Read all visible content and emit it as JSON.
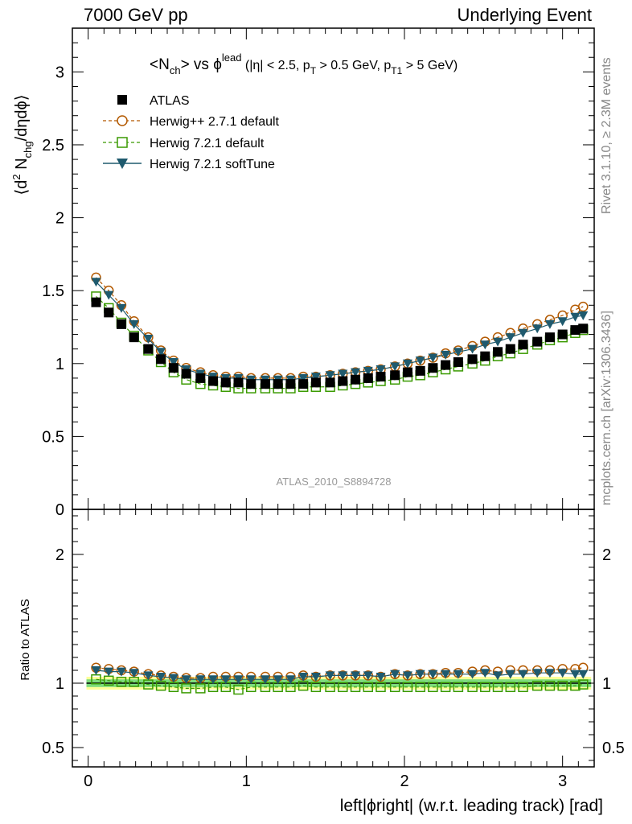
{
  "header": {
    "left": "7000 GeV pp",
    "right": "Underlying Event"
  },
  "side_text": {
    "rivet": "Rivet 3.1.10, ≥ 2.3M events",
    "mcplots": "mcplots.cern.ch [arXiv:1306.3436]"
  },
  "analysis_label": "ATLAS_2010_S8894728",
  "title": {
    "main": "<N",
    "main_sub": "ch",
    "vs": "> vs ϕ",
    "vs_sup": "lead",
    "cut1": " (|η| < 2.5, p",
    "cut1_sub": "T",
    "cut2": " > 0.5 GeV, p",
    "cut2_sub": "T1",
    "cut3": " > 5 GeV)"
  },
  "ylabel_top": {
    "a": "⟨d",
    "a_sup": "2",
    "b": " N",
    "b_sub": "chg",
    "c": "/dηdϕ⟩"
  },
  "ylabel_bottom": "Ratio to ATLAS",
  "xlabel": "left|ϕright| (w.r.t. leading track) [rad]",
  "legend": [
    {
      "label": "ATLAS",
      "color": "#000000",
      "marker": "filled-square"
    },
    {
      "label": "Herwig++ 2.7.1 default",
      "color": "#b35900",
      "marker": "open-circle"
    },
    {
      "label": "Herwig 7.2.1 default",
      "color": "#3a9a00",
      "marker": "open-square"
    },
    {
      "label": "Herwig 7.2.1 softTune",
      "color": "#1f5a6e",
      "marker": "filled-triangle-down"
    }
  ],
  "chart_data": [
    {
      "type": "scatter",
      "panel": "main",
      "x": [
        0.05,
        0.13,
        0.21,
        0.29,
        0.38,
        0.46,
        0.54,
        0.62,
        0.71,
        0.79,
        0.87,
        0.95,
        1.03,
        1.12,
        1.2,
        1.28,
        1.36,
        1.44,
        1.53,
        1.61,
        1.69,
        1.77,
        1.85,
        1.94,
        2.02,
        2.1,
        2.18,
        2.26,
        2.34,
        2.43,
        2.51,
        2.59,
        2.67,
        2.75,
        2.84,
        2.92,
        3.0,
        3.08,
        3.13
      ],
      "xlim": [
        -0.1,
        3.2
      ],
      "ylim": [
        0,
        3.3
      ],
      "xticks": [
        0,
        1,
        2,
        3
      ],
      "yticks": [
        0,
        0.5,
        1,
        1.5,
        2,
        2.5,
        3
      ],
      "series": [
        {
          "name": "ATLAS",
          "color": "#000000",
          "values": [
            1.42,
            1.35,
            1.27,
            1.18,
            1.1,
            1.03,
            0.97,
            0.93,
            0.9,
            0.88,
            0.87,
            0.87,
            0.86,
            0.86,
            0.86,
            0.86,
            0.86,
            0.87,
            0.87,
            0.88,
            0.89,
            0.9,
            0.91,
            0.92,
            0.94,
            0.95,
            0.97,
            0.99,
            1.01,
            1.03,
            1.05,
            1.08,
            1.1,
            1.13,
            1.15,
            1.18,
            1.2,
            1.23,
            1.24
          ]
        },
        {
          "name": "Herwig++ 2.7.1 default",
          "color": "#b35900",
          "values": [
            1.59,
            1.5,
            1.4,
            1.29,
            1.18,
            1.09,
            1.02,
            0.97,
            0.94,
            0.92,
            0.91,
            0.91,
            0.9,
            0.9,
            0.9,
            0.9,
            0.91,
            0.91,
            0.92,
            0.93,
            0.94,
            0.95,
            0.96,
            0.98,
            1.0,
            1.02,
            1.04,
            1.07,
            1.09,
            1.12,
            1.15,
            1.18,
            1.21,
            1.24,
            1.27,
            1.3,
            1.33,
            1.37,
            1.39
          ]
        },
        {
          "name": "Herwig 7.2.1 default",
          "color": "#3a9a00",
          "values": [
            1.46,
            1.38,
            1.28,
            1.19,
            1.09,
            1.01,
            0.94,
            0.89,
            0.86,
            0.85,
            0.84,
            0.83,
            0.83,
            0.83,
            0.83,
            0.83,
            0.84,
            0.84,
            0.84,
            0.85,
            0.86,
            0.87,
            0.88,
            0.89,
            0.91,
            0.92,
            0.94,
            0.96,
            0.98,
            1.0,
            1.02,
            1.05,
            1.07,
            1.1,
            1.13,
            1.16,
            1.18,
            1.21,
            1.23
          ]
        },
        {
          "name": "Herwig 7.2.1 softTune",
          "color": "#1f5a6e",
          "values": [
            1.56,
            1.47,
            1.38,
            1.27,
            1.17,
            1.08,
            1.01,
            0.96,
            0.93,
            0.91,
            0.9,
            0.9,
            0.89,
            0.89,
            0.89,
            0.89,
            0.9,
            0.91,
            0.92,
            0.93,
            0.94,
            0.95,
            0.96,
            0.98,
            1.0,
            1.02,
            1.04,
            1.06,
            1.08,
            1.1,
            1.13,
            1.15,
            1.18,
            1.21,
            1.24,
            1.27,
            1.29,
            1.32,
            1.33
          ]
        }
      ]
    },
    {
      "type": "scatter",
      "panel": "ratio",
      "xlim": [
        -0.1,
        3.2
      ],
      "ylim": [
        0.35,
        2.35
      ],
      "yticks": [
        0.5,
        1,
        2
      ],
      "band": {
        "inner": 0.03,
        "outer": 0.05,
        "inner_color": "#7ddc7d",
        "outer_color": "#ffff99"
      },
      "series": [
        {
          "name": "Herwig++ 2.7.1 default",
          "values": [
            1.12,
            1.11,
            1.1,
            1.09,
            1.07,
            1.06,
            1.05,
            1.04,
            1.04,
            1.05,
            1.05,
            1.05,
            1.05,
            1.05,
            1.05,
            1.05,
            1.06,
            1.05,
            1.06,
            1.06,
            1.06,
            1.06,
            1.05,
            1.07,
            1.06,
            1.07,
            1.07,
            1.08,
            1.08,
            1.09,
            1.1,
            1.09,
            1.1,
            1.1,
            1.1,
            1.1,
            1.11,
            1.11,
            1.12
          ]
        },
        {
          "name": "Herwig 7.2.1 default",
          "values": [
            1.03,
            1.02,
            1.01,
            1.01,
            0.99,
            0.98,
            0.97,
            0.96,
            0.96,
            0.97,
            0.97,
            0.95,
            0.97,
            0.97,
            0.97,
            0.97,
            0.98,
            0.97,
            0.97,
            0.97,
            0.97,
            0.97,
            0.97,
            0.97,
            0.97,
            0.97,
            0.97,
            0.97,
            0.97,
            0.97,
            0.97,
            0.97,
            0.97,
            0.97,
            0.98,
            0.98,
            0.98,
            0.98,
            0.99
          ]
        },
        {
          "name": "Herwig 7.2.1 softTune",
          "values": [
            1.1,
            1.09,
            1.09,
            1.08,
            1.06,
            1.05,
            1.04,
            1.03,
            1.03,
            1.03,
            1.03,
            1.03,
            1.03,
            1.03,
            1.03,
            1.03,
            1.05,
            1.05,
            1.06,
            1.06,
            1.06,
            1.06,
            1.05,
            1.07,
            1.06,
            1.07,
            1.07,
            1.07,
            1.07,
            1.07,
            1.08,
            1.06,
            1.07,
            1.07,
            1.08,
            1.08,
            1.08,
            1.07,
            1.07
          ]
        }
      ]
    }
  ]
}
